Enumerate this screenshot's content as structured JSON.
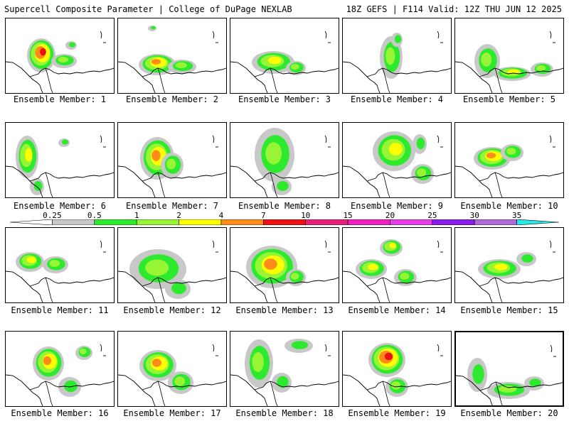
{
  "header": {
    "title": "Supercell Composite Parameter | College of DuPage NEXLAB",
    "valid": "18Z GEFS | F114 Valid: 12Z THU JUN 12 2025"
  },
  "members": [
    "Ensemble Member: 1",
    "Ensemble Member: 2",
    "Ensemble Member: 3",
    "Ensemble Member: 4",
    "Ensemble Member: 5",
    "Ensemble Member: 6",
    "Ensemble Member: 7",
    "Ensemble Member: 8",
    "Ensemble Member: 9",
    "Ensemble Member: 10",
    "Ensemble Member: 11",
    "Ensemble Member: 12",
    "Ensemble Member: 13",
    "Ensemble Member: 14",
    "Ensemble Member: 15",
    "Ensemble Member: 16",
    "Ensemble Member: 17",
    "Ensemble Member: 18",
    "Ensemble Member: 19",
    "Ensemble Member: 20"
  ],
  "selected_member": "Ensemble Member: 20",
  "colorbar": {
    "labels": [
      "0.25",
      "0.5",
      "1",
      "2",
      "4",
      "7",
      "10",
      "15",
      "20",
      "25",
      "30",
      "35"
    ],
    "colors": [
      "#c8c8c8",
      "#2eea2e",
      "#98f535",
      "#ffff00",
      "#ff8c1a",
      "#ee1111",
      "#e8207c",
      "#ee20c0",
      "#e83ce8",
      "#8a1ee8",
      "#b06ad8",
      "#28e8e8"
    ]
  }
}
